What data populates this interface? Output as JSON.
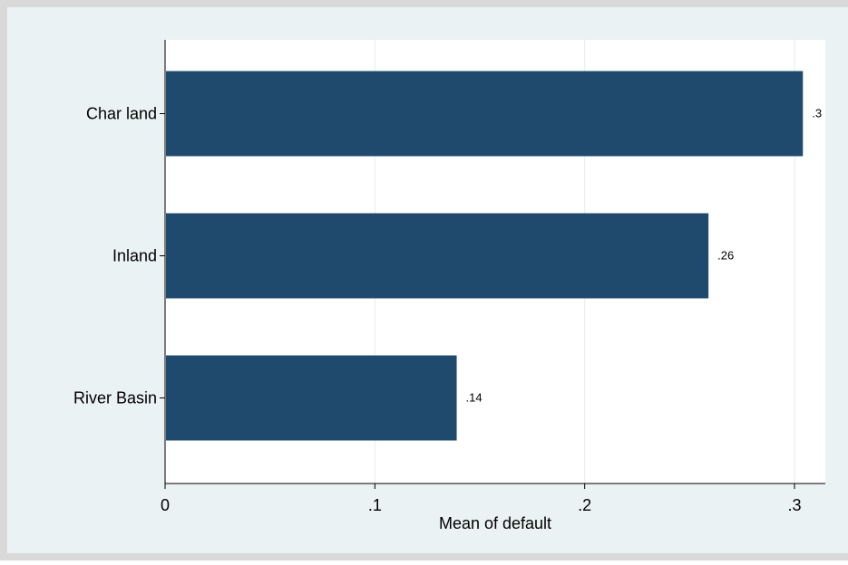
{
  "chart_data": {
    "type": "bar",
    "orientation": "horizontal",
    "categories": [
      "Char land",
      "Inland",
      "River Basin"
    ],
    "values": [
      0.304,
      0.259,
      0.139
    ],
    "value_labels": [
      ".3",
      ".26",
      ".14"
    ],
    "xlabel": "Mean of default",
    "xlim": [
      0,
      0.31
    ],
    "xticks": [
      0,
      0.1,
      0.2,
      0.3
    ],
    "xtick_labels": [
      "0",
      ".1",
      ".2",
      ".3"
    ],
    "grid": "vertical",
    "legend": "none",
    "colors": {
      "bar": "#1f4a6e",
      "outer_background": "#d9d9d9",
      "plot_region": "#eaf2f3",
      "plot_area": "#ffffff",
      "gridline": "#e6eef0",
      "axis": "#000000",
      "text": "#000000"
    }
  }
}
